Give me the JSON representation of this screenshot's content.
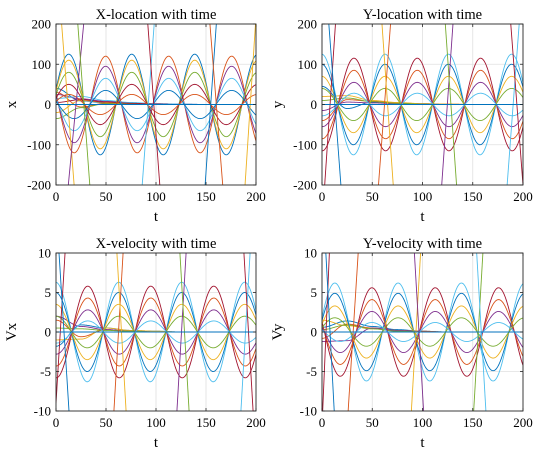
{
  "chart_data": [
    {
      "type": "line",
      "title": "X-location with time",
      "xlabel": "t",
      "ylabel": "x",
      "xlim": [
        0,
        200
      ],
      "ylim": [
        -200,
        200
      ],
      "xticks": [
        "0",
        "50",
        "100",
        "150",
        "200"
      ],
      "yticks": [
        "-200",
        "-100",
        "0",
        "100",
        "200"
      ],
      "grid": true,
      "period": 63,
      "node_times": [
        31,
        94,
        157
      ],
      "series": [
        {
          "kind": "damped",
          "values": [
            40,
            9,
            4,
            2,
            1,
            0,
            0,
            0,
            0
          ]
        },
        {
          "kind": "damped",
          "values": [
            30,
            -6,
            3,
            1,
            0,
            0,
            0,
            0,
            0
          ]
        },
        {
          "kind": "damped",
          "values": [
            -20,
            10,
            5,
            2,
            1,
            0,
            0,
            0,
            0
          ]
        },
        {
          "kind": "damped",
          "values": [
            25,
            14,
            8,
            4,
            2,
            1,
            0,
            0,
            0
          ]
        },
        {
          "kind": "damped",
          "values": [
            -35,
            -8,
            2,
            1,
            0,
            0,
            0,
            0,
            0
          ]
        },
        {
          "kind": "damped",
          "values": [
            15,
            20,
            10,
            5,
            2,
            1,
            0,
            0,
            0
          ]
        },
        {
          "kind": "damped",
          "values": [
            5,
            12,
            6,
            3,
            1,
            0,
            0,
            0,
            0
          ]
        },
        {
          "kind": "oscillating",
          "amplitude": 125,
          "phase": 0.3
        },
        {
          "kind": "oscillating",
          "amplitude": 120,
          "phase": 2.9
        },
        {
          "kind": "oscillating",
          "amplitude": 110,
          "phase": 0.3
        },
        {
          "kind": "oscillating",
          "amplitude": 95,
          "phase": 2.9
        },
        {
          "kind": "oscillating",
          "amplitude": 80,
          "phase": 0.3
        },
        {
          "kind": "oscillating",
          "amplitude": 65,
          "phase": 2.9
        },
        {
          "kind": "oscillating",
          "amplitude": 50,
          "phase": 0.3
        },
        {
          "kind": "oscillating",
          "amplitude": 35,
          "phase": 2.9
        },
        {
          "kind": "oscillating",
          "amplitude": 25,
          "phase": 0.3
        },
        {
          "kind": "linear",
          "values": [
            [
              0,
              380
            ],
            [
              20,
              -260
            ]
          ]
        },
        {
          "kind": "linear",
          "values": [
            [
              10,
              -260
            ],
            [
              30,
              260
            ]
          ]
        },
        {
          "kind": "linear",
          "values": [
            [
              20,
              260
            ],
            [
              35,
              -240
            ]
          ]
        },
        {
          "kind": "linear",
          "values": [
            [
              85,
              -240
            ],
            [
              100,
              260
            ]
          ]
        },
        {
          "kind": "linear",
          "values": [
            [
              90,
              260
            ],
            [
              105,
              -240
            ]
          ]
        },
        {
          "kind": "linear",
          "values": [
            [
              148,
              -240
            ],
            [
              162,
              260
            ]
          ]
        },
        {
          "kind": "linear",
          "values": [
            [
              152,
              260
            ],
            [
              168,
              -240
            ]
          ]
        },
        {
          "kind": "linear",
          "values": [
            [
              188,
              -240
            ],
            [
              200,
              220
            ]
          ]
        }
      ]
    },
    {
      "type": "line",
      "title": "Y-location with time",
      "xlabel": "t",
      "ylabel": "y",
      "xlim": [
        0,
        200
      ],
      "ylim": [
        -200,
        200
      ],
      "xticks": [
        "0",
        "50",
        "100",
        "150",
        "200"
      ],
      "yticks": [
        "-200",
        "-100",
        "0",
        "100",
        "200"
      ],
      "grid": true,
      "period": 63,
      "node_times": [
        63,
        126,
        189
      ],
      "series": [
        {
          "kind": "damped",
          "values": [
            45,
            -10,
            6,
            3,
            1,
            0,
            0,
            0,
            0
          ]
        },
        {
          "kind": "damped",
          "values": [
            -40,
            12,
            8,
            4,
            2,
            1,
            0,
            0,
            0
          ]
        },
        {
          "kind": "damped",
          "values": [
            20,
            22,
            10,
            5,
            2,
            1,
            0,
            0,
            0
          ]
        },
        {
          "kind": "damped",
          "values": [
            -15,
            6,
            4,
            2,
            1,
            0,
            0,
            0,
            0
          ]
        },
        {
          "kind": "damped",
          "values": [
            10,
            16,
            7,
            3,
            1,
            0,
            0,
            0,
            0
          ]
        },
        {
          "kind": "oscillating",
          "amplitude": 125,
          "phase": 1.6
        },
        {
          "kind": "oscillating",
          "amplitude": 115,
          "phase": -1.6
        },
        {
          "kind": "oscillating",
          "amplitude": 100,
          "phase": 1.6
        },
        {
          "kind": "oscillating",
          "amplitude": 85,
          "phase": -1.6
        },
        {
          "kind": "oscillating",
          "amplitude": 70,
          "phase": 1.6
        },
        {
          "kind": "oscillating",
          "amplitude": 55,
          "phase": -1.6
        },
        {
          "kind": "oscillating",
          "amplitude": 40,
          "phase": 1.6
        },
        {
          "kind": "oscillating",
          "amplitude": 28,
          "phase": -1.6
        },
        {
          "kind": "linear",
          "values": [
            [
              0,
              -300
            ],
            [
              15,
              260
            ]
          ]
        },
        {
          "kind": "linear",
          "values": [
            [
              5,
              260
            ],
            [
              20,
              -240
            ]
          ]
        },
        {
          "kind": "linear",
          "values": [
            [
              55,
              -240
            ],
            [
              70,
              260
            ]
          ]
        },
        {
          "kind": "linear",
          "values": [
            [
              58,
              260
            ],
            [
              72,
              -240
            ]
          ]
        },
        {
          "kind": "linear",
          "values": [
            [
              118,
              -240
            ],
            [
              132,
              260
            ]
          ]
        },
        {
          "kind": "linear",
          "values": [
            [
              121,
              260
            ],
            [
              135,
              -240
            ]
          ]
        },
        {
          "kind": "linear",
          "values": [
            [
              183,
              -240
            ],
            [
              198,
              260
            ]
          ]
        },
        {
          "kind": "linear",
          "values": [
            [
              186,
              260
            ],
            [
              200,
              -200
            ]
          ]
        }
      ]
    },
    {
      "type": "line",
      "title": "X-velocity with time",
      "xlabel": "t",
      "ylabel": "Vx",
      "xlim": [
        0,
        200
      ],
      "ylim": [
        -10,
        10
      ],
      "xticks": [
        "0",
        "50",
        "100",
        "150",
        "200"
      ],
      "yticks": [
        "-10",
        "-5",
        "0",
        "5",
        "10"
      ],
      "grid": true,
      "period": 63,
      "node_times": [
        63,
        126,
        189
      ],
      "series": [
        {
          "kind": "damped",
          "values": [
            -1.8,
            0.9,
            0.5,
            0.2,
            0.1,
            0,
            0,
            0,
            0
          ]
        },
        {
          "kind": "damped",
          "values": [
            1.5,
            -0.6,
            0.3,
            0.1,
            0,
            0,
            0,
            0,
            0
          ]
        },
        {
          "kind": "damped",
          "values": [
            -1,
            -0.9,
            0.5,
            0.2,
            0.1,
            0,
            0,
            0,
            0
          ]
        },
        {
          "kind": "damped",
          "values": [
            2,
            0.7,
            0.3,
            0.1,
            0,
            0,
            0,
            0,
            0
          ]
        },
        {
          "kind": "damped",
          "values": [
            0.5,
            0.4,
            0.2,
            0.1,
            0,
            0,
            0,
            0,
            0
          ]
        },
        {
          "kind": "oscillating",
          "amplitude": 6.3,
          "phase": 1.6
        },
        {
          "kind": "oscillating",
          "amplitude": 5.8,
          "phase": -1.6
        },
        {
          "kind": "oscillating",
          "amplitude": 5,
          "phase": 1.6
        },
        {
          "kind": "oscillating",
          "amplitude": 4.3,
          "phase": -1.6
        },
        {
          "kind": "oscillating",
          "amplitude": 3.5,
          "phase": 1.6
        },
        {
          "kind": "oscillating",
          "amplitude": 2.8,
          "phase": -1.6
        },
        {
          "kind": "oscillating",
          "amplitude": 2,
          "phase": 1.6
        },
        {
          "kind": "oscillating",
          "amplitude": 1.4,
          "phase": -1.6
        },
        {
          "kind": "linear",
          "values": [
            [
              0,
              -9
            ],
            [
              10,
              12
            ]
          ]
        },
        {
          "kind": "linear",
          "values": [
            [
              2,
              12
            ],
            [
              14,
              -12
            ]
          ]
        },
        {
          "kind": "linear",
          "values": [
            [
              57,
              -12
            ],
            [
              68,
              12
            ]
          ]
        },
        {
          "kind": "linear",
          "values": [
            [
              60,
              12
            ],
            [
              71,
              -12
            ]
          ]
        },
        {
          "kind": "linear",
          "values": [
            [
              120,
              -12
            ],
            [
              131,
              12
            ]
          ]
        },
        {
          "kind": "linear",
          "values": [
            [
              123,
              12
            ],
            [
              134,
              -12
            ]
          ]
        },
        {
          "kind": "linear",
          "values": [
            [
              184,
              -12
            ],
            [
              195,
              12
            ]
          ]
        },
        {
          "kind": "linear",
          "values": [
            [
              187,
              12
            ],
            [
              198,
              -12
            ]
          ]
        }
      ]
    },
    {
      "type": "line",
      "title": "Y-velocity with time",
      "xlabel": "t",
      "ylabel": "Vy",
      "xlim": [
        0,
        200
      ],
      "ylim": [
        -10,
        10
      ],
      "xticks": [
        "0",
        "50",
        "100",
        "150",
        "200"
      ],
      "yticks": [
        "-10",
        "-5",
        "0",
        "5",
        "10"
      ],
      "grid": true,
      "period": 63,
      "node_times": [
        31,
        94,
        157
      ],
      "series": [
        {
          "kind": "damped",
          "values": [
            0.6,
            1.4,
            0.7,
            0.3,
            0.1,
            0,
            0,
            0,
            0
          ]
        },
        {
          "kind": "damped",
          "values": [
            -0.8,
            1,
            0.5,
            0.2,
            0.1,
            0,
            0,
            0,
            0
          ]
        },
        {
          "kind": "damped",
          "values": [
            1.5,
            0.8,
            0.4,
            0.2,
            0,
            0,
            0,
            0,
            0
          ]
        },
        {
          "kind": "damped",
          "values": [
            -1.2,
            -1.1,
            0.5,
            0.2,
            0,
            0,
            0,
            0,
            0
          ]
        },
        {
          "kind": "damped",
          "values": [
            0.3,
            0.9,
            0.4,
            0.1,
            0,
            0,
            0,
            0,
            0
          ]
        },
        {
          "kind": "oscillating",
          "amplitude": 6.2,
          "phase": 0.3
        },
        {
          "kind": "oscillating",
          "amplitude": 5.6,
          "phase": 2.9
        },
        {
          "kind": "oscillating",
          "amplitude": 4.9,
          "phase": 0.3
        },
        {
          "kind": "oscillating",
          "amplitude": 4.1,
          "phase": 2.9
        },
        {
          "kind": "oscillating",
          "amplitude": 3.3,
          "phase": 0.3
        },
        {
          "kind": "oscillating",
          "amplitude": 2.6,
          "phase": 2.9
        },
        {
          "kind": "oscillating",
          "amplitude": 1.8,
          "phase": 0.3
        },
        {
          "kind": "oscillating",
          "amplitude": 1.2,
          "phase": 2.9
        },
        {
          "kind": "linear",
          "values": [
            [
              0,
              -12
            ],
            [
              8,
              12
            ]
          ]
        },
        {
          "kind": "linear",
          "values": [
            [
              3,
              12
            ],
            [
              13,
              -12
            ]
          ]
        },
        {
          "kind": "linear",
          "values": [
            [
              25,
              -12
            ],
            [
              37,
              12
            ]
          ]
        },
        {
          "kind": "linear",
          "values": [
            [
              88,
              -12
            ],
            [
              99,
              12
            ]
          ]
        },
        {
          "kind": "linear",
          "values": [
            [
              91,
              12
            ],
            [
              102,
              -12
            ]
          ]
        },
        {
          "kind": "linear",
          "values": [
            [
              150,
              -12
            ],
            [
              161,
              12
            ]
          ]
        },
        {
          "kind": "linear",
          "values": [
            [
              153,
              12
            ],
            [
              164,
              -12
            ]
          ]
        }
      ]
    }
  ],
  "colors": [
    "#0072BD",
    "#D95319",
    "#EDB120",
    "#7E2F8E",
    "#77AC30",
    "#4DBEEE",
    "#A2142F"
  ],
  "grid_color": "#e0e0e0"
}
